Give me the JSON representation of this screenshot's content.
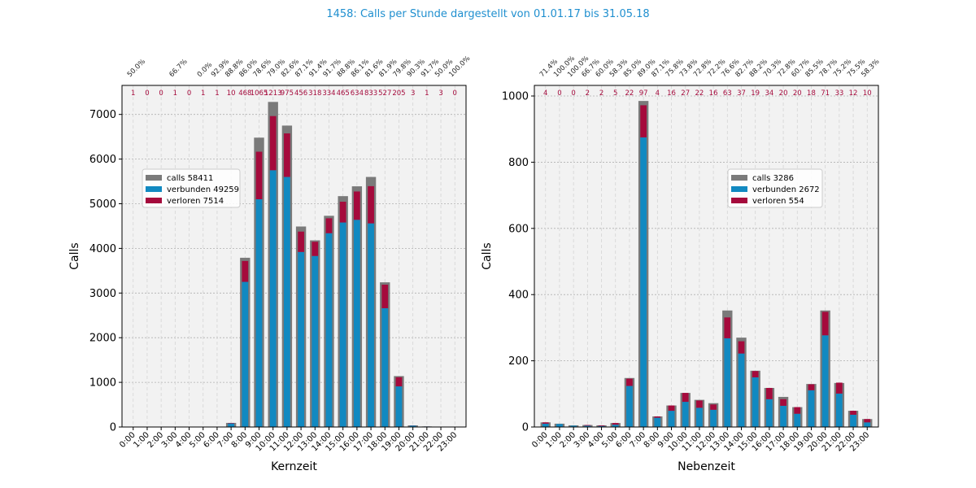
{
  "title": "1458: Calls per Stunde dargestellt von 01.01.17 bis 31.05.18",
  "colors": {
    "title": "#1f8fcf",
    "calls": "#7a7a7a",
    "verbunden": "#1189c1",
    "verloren": "#a50a3c",
    "plot_bg": "#f2f2f2",
    "grid": "#b0b0b0"
  },
  "chart_data": [
    {
      "type": "bar",
      "xlabel": "Kernzeit",
      "ylabel": "Calls",
      "ylim": [
        0,
        7650
      ],
      "yticks": [
        0,
        1000,
        2000,
        3000,
        4000,
        5000,
        6000,
        7000
      ],
      "grid": true,
      "legend_position": "upper-left",
      "categories": [
        "0:00",
        "1:00",
        "2:00",
        "3:00",
        "4:00",
        "5:00",
        "6:00",
        "7:00",
        "8:00",
        "9:00",
        "10:00",
        "11:00",
        "12:00",
        "13:00",
        "14:00",
        "15:00",
        "16:00",
        "17:00",
        "18:00",
        "19:00",
        "20:00",
        "21:00",
        "22:00",
        "23:00"
      ],
      "legend": [
        "calls 58411",
        "verbunden 49259",
        "verloren 7514"
      ],
      "series": [
        {
          "name": "calls",
          "values": [
            2,
            0,
            0,
            3,
            0,
            1,
            8,
            92,
            3790,
            6480,
            7280,
            6750,
            4490,
            4180,
            4730,
            5170,
            5390,
            5600,
            3240,
            1140,
            36,
            12,
            6,
            1
          ]
        },
        {
          "name": "verbunden",
          "values": [
            1,
            0,
            0,
            2,
            0,
            0,
            6,
            80,
            3250,
            5100,
            5750,
            5600,
            3920,
            3830,
            4340,
            4580,
            4640,
            4560,
            2660,
            910,
            32,
            11,
            3,
            0
          ]
        },
        {
          "name": "verloren",
          "values": [
            1,
            0,
            0,
            1,
            0,
            1,
            1,
            10,
            468,
            1065,
            1213,
            975,
            456,
            318,
            334,
            465,
            634,
            833,
            527,
            205,
            3,
            1,
            3,
            0
          ]
        }
      ],
      "top_labels_pct": [
        "50.0%",
        "",
        "",
        "66.7%",
        "",
        "0.0%",
        "92.9%",
        "88.8%",
        "86.0%",
        "78.6%",
        "79.0%",
        "82.6%",
        "87.1%",
        "91.4%",
        "91.7%",
        "88.8%",
        "86.1%",
        "81.6%",
        "81.9%",
        "79.8%",
        "90.3%",
        "91.7%",
        "50.0%",
        "100.0%"
      ],
      "top_labels_lost": [
        "1",
        "0",
        "0",
        "1",
        "0",
        "1",
        "1",
        "10",
        "468",
        "1065",
        "1213",
        "975",
        "456",
        "318",
        "334",
        "465",
        "634",
        "833",
        "527",
        "205",
        "3",
        "1",
        "3",
        "0"
      ]
    },
    {
      "type": "bar",
      "xlabel": "Nebenzeit",
      "ylabel": "Calls",
      "ylim": [
        0,
        1032
      ],
      "yticks": [
        0,
        200,
        400,
        600,
        800,
        1000
      ],
      "grid": true,
      "legend_position": "center-right",
      "categories": [
        "0:00",
        "1:00",
        "2:00",
        "3:00",
        "4:00",
        "5:00",
        "6:00",
        "7:00",
        "8:00",
        "9:00",
        "10:00",
        "11:00",
        "12:00",
        "13:00",
        "14:00",
        "15:00",
        "16:00",
        "17:00",
        "18:00",
        "19:00",
        "20:00",
        "21:00",
        "22:00",
        "23:00"
      ],
      "legend": [
        "calls 3286",
        "verbunden 2672",
        "verloren 554"
      ],
      "series": [
        {
          "name": "calls",
          "values": [
            14,
            10,
            5,
            6,
            5,
            12,
            148,
            985,
            32,
            65,
            103,
            82,
            72,
            352,
            270,
            170,
            118,
            91,
            60,
            130,
            352,
            133,
            49,
            24
          ]
        },
        {
          "name": "verbunden",
          "values": [
            10,
            9,
            4,
            4,
            3,
            7,
            124,
            875,
            28,
            49,
            76,
            58,
            52,
            268,
            222,
            150,
            84,
            64,
            40,
            111,
            277,
            101,
            37,
            14
          ]
        },
        {
          "name": "verloren",
          "values": [
            4,
            0,
            0,
            2,
            2,
            5,
            22,
            97,
            4,
            16,
            27,
            22,
            16,
            63,
            37,
            19,
            34,
            20,
            20,
            18,
            71,
            33,
            12,
            10
          ]
        }
      ],
      "top_labels_pct": [
        "71.4%",
        "100.0%",
        "100.0%",
        "66.7%",
        "60.0%",
        "58.3%",
        "85.0%",
        "89.0%",
        "87.1%",
        "75.8%",
        "73.8%",
        "72.8%",
        "72.2%",
        "76.6%",
        "82.7%",
        "88.2%",
        "70.3%",
        "72.8%",
        "60.7%",
        "85.5%",
        "78.7%",
        "75.2%",
        "75.5%",
        "58.3%"
      ],
      "top_labels_lost": [
        "4",
        "0",
        "0",
        "2",
        "2",
        "5",
        "22",
        "97",
        "4",
        "16",
        "27",
        "22",
        "16",
        "63",
        "37",
        "19",
        "34",
        "20",
        "20",
        "18",
        "71",
        "33",
        "12",
        "10"
      ]
    }
  ]
}
